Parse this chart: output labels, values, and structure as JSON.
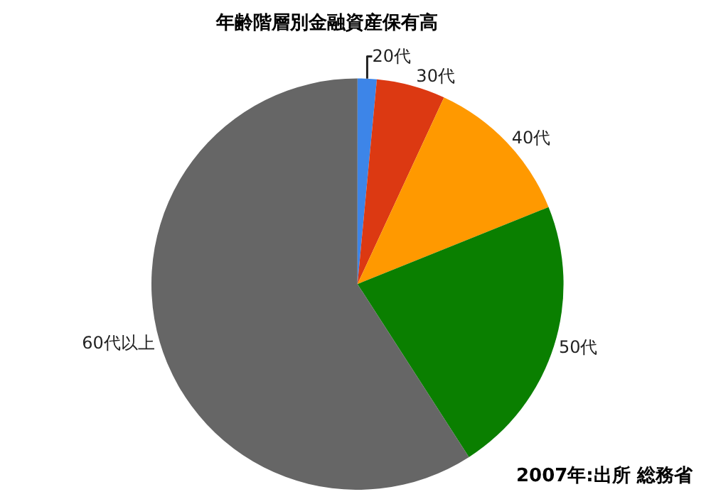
{
  "chart_data": {
    "type": "pie",
    "title": "年齢階層別金融資産保有高",
    "categories": [
      "20代",
      "30代",
      "40代",
      "50代",
      "60代以上"
    ],
    "values": [
      1.5,
      5.4,
      12,
      22,
      59.1
    ],
    "colors": [
      "#3d85e8",
      "#dc3912",
      "#ff9900",
      "#0a7f00",
      "#666666"
    ],
    "legend": false,
    "annotations": [
      "2007年:出所 総務省"
    ]
  }
}
